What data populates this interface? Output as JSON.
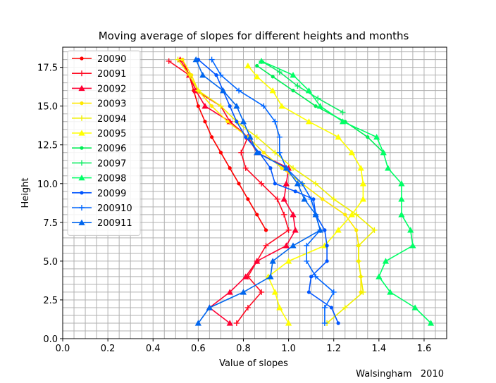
{
  "chart_data": {
    "type": "line",
    "title": "Moving average of slopes for different heights and months",
    "xlabel": "Value of slopes",
    "ylabel": "Height",
    "footer": "Walsingham   2010",
    "xlim": [
      0.0,
      1.7
    ],
    "ylim": [
      0.0,
      18.8
    ],
    "x_ticks": [
      "0.0",
      "0.2",
      "0.4",
      "0.6",
      "0.8",
      "1.0",
      "1.2",
      "1.4",
      "1.6"
    ],
    "y_ticks": [
      "0.0",
      "2.5",
      "5.0",
      "7.5",
      "10.0",
      "12.5",
      "15.0",
      "17.5"
    ],
    "x_tick_values": [
      0.0,
      0.2,
      0.4,
      0.6,
      0.8,
      1.0,
      1.2,
      1.4,
      1.6
    ],
    "y_tick_values": [
      0.0,
      2.5,
      5.0,
      7.5,
      10.0,
      12.5,
      15.0,
      17.5
    ],
    "grid": true,
    "legend_position": "top-left",
    "series": [
      {
        "name": "20090",
        "color": "#ff0000",
        "marker": "dot",
        "points": [
          [
            0.53,
            18.0
          ],
          [
            0.56,
            17.0
          ],
          [
            0.58,
            16.0
          ],
          [
            0.6,
            15.0
          ],
          [
            0.63,
            14.0
          ],
          [
            0.66,
            13.0
          ],
          [
            0.7,
            12.0
          ],
          [
            0.74,
            11.0
          ],
          [
            0.78,
            10.0
          ],
          [
            0.82,
            9.0
          ],
          [
            0.86,
            8.0
          ],
          [
            0.9,
            7.0
          ]
        ]
      },
      {
        "name": "20091",
        "color": "#ff0a22",
        "marker": "plus",
        "points": [
          [
            0.47,
            17.9
          ],
          [
            0.56,
            17.0
          ],
          [
            0.59,
            16.0
          ],
          [
            0.7,
            15.0
          ],
          [
            0.74,
            14.0
          ],
          [
            0.82,
            13.0
          ],
          [
            0.79,
            12.0
          ],
          [
            0.81,
            11.0
          ],
          [
            0.88,
            10.0
          ],
          [
            0.95,
            9.0
          ],
          [
            0.98,
            8.0
          ],
          [
            1.0,
            7.0
          ],
          [
            0.9,
            6.0
          ],
          [
            0.86,
            5.0
          ],
          [
            0.82,
            4.0
          ],
          [
            0.88,
            3.0
          ],
          [
            0.82,
            2.0
          ],
          [
            0.77,
            1.0
          ]
        ]
      },
      {
        "name": "20092",
        "color": "#ff0033",
        "marker": "triangle",
        "points": [
          [
            0.52,
            18.0
          ],
          [
            0.56,
            17.0
          ],
          [
            0.59,
            16.0
          ],
          [
            0.63,
            15.0
          ],
          [
            0.74,
            14.0
          ],
          [
            0.82,
            13.0
          ],
          [
            0.86,
            12.0
          ],
          [
            1.0,
            11.0
          ],
          [
            0.99,
            10.0
          ],
          [
            0.98,
            9.0
          ],
          [
            1.02,
            8.0
          ],
          [
            1.03,
            7.0
          ],
          [
            0.99,
            6.0
          ],
          [
            0.86,
            5.0
          ],
          [
            0.81,
            4.0
          ],
          [
            0.74,
            3.0
          ],
          [
            0.65,
            2.0
          ],
          [
            0.74,
            1.0
          ]
        ]
      },
      {
        "name": "20093",
        "color": "#ffe800",
        "marker": "dot",
        "points": [
          [
            0.53,
            18.0
          ],
          [
            0.57,
            17.0
          ],
          [
            0.6,
            16.0
          ],
          [
            0.66,
            15.0
          ],
          [
            0.73,
            14.0
          ],
          [
            0.82,
            13.0
          ],
          [
            0.89,
            12.0
          ],
          [
            0.97,
            11.0
          ],
          [
            1.06,
            10.0
          ],
          [
            1.15,
            9.0
          ],
          [
            1.25,
            8.0
          ],
          [
            1.3,
            7.0
          ],
          [
            1.31,
            6.0
          ],
          [
            1.31,
            5.0
          ],
          [
            1.32,
            4.0
          ],
          [
            1.32,
            3.0
          ]
        ]
      },
      {
        "name": "20094",
        "color": "#f0f000",
        "marker": "plus",
        "points": [
          [
            0.51,
            18.0
          ],
          [
            0.56,
            17.0
          ],
          [
            0.6,
            16.0
          ],
          [
            0.7,
            15.0
          ],
          [
            0.77,
            14.0
          ],
          [
            0.86,
            13.0
          ],
          [
            0.94,
            12.0
          ],
          [
            1.02,
            11.0
          ],
          [
            1.12,
            10.0
          ],
          [
            1.2,
            9.0
          ],
          [
            1.3,
            8.0
          ],
          [
            1.38,
            7.0
          ],
          [
            1.31,
            6.0
          ],
          [
            1.31,
            5.0
          ],
          [
            1.32,
            4.0
          ],
          [
            1.33,
            3.0
          ],
          [
            1.25,
            2.0
          ],
          [
            1.17,
            1.0
          ]
        ]
      },
      {
        "name": "20095",
        "color": "#ffff00",
        "marker": "triangle",
        "points": [
          [
            0.82,
            17.6
          ],
          [
            0.86,
            16.9
          ],
          [
            0.93,
            16.0
          ],
          [
            0.97,
            15.0
          ],
          [
            1.09,
            14.0
          ],
          [
            1.22,
            13.0
          ],
          [
            1.28,
            12.0
          ],
          [
            1.32,
            11.0
          ],
          [
            1.33,
            10.0
          ],
          [
            1.33,
            9.0
          ],
          [
            1.28,
            8.0
          ],
          [
            1.22,
            7.0
          ],
          [
            1.16,
            6.0
          ],
          [
            1.0,
            5.0
          ],
          [
            0.91,
            4.0
          ],
          [
            0.94,
            3.0
          ],
          [
            0.96,
            2.0
          ],
          [
            1.0,
            1.0
          ]
        ]
      },
      {
        "name": "20096",
        "color": "#00ee55",
        "marker": "dot",
        "points": [
          [
            0.86,
            17.6
          ],
          [
            0.93,
            16.9
          ],
          [
            1.02,
            16.0
          ],
          [
            1.12,
            15.0
          ],
          [
            1.25,
            14.0
          ],
          [
            1.35,
            13.0
          ],
          [
            1.42,
            12.0
          ]
        ]
      },
      {
        "name": "20097",
        "color": "#11ee66",
        "marker": "plus",
        "points": [
          [
            0.88,
            17.9
          ],
          [
            0.96,
            17.2
          ],
          [
            1.04,
            16.3
          ],
          [
            1.13,
            15.5
          ],
          [
            1.24,
            14.6
          ]
        ]
      },
      {
        "name": "20098",
        "color": "#00ff66",
        "marker": "triangle",
        "points": [
          [
            0.88,
            17.9
          ],
          [
            1.02,
            17.0
          ],
          [
            1.09,
            16.0
          ],
          [
            1.14,
            15.0
          ],
          [
            1.24,
            14.0
          ],
          [
            1.39,
            13.0
          ],
          [
            1.42,
            12.0
          ],
          [
            1.44,
            11.0
          ],
          [
            1.5,
            10.0
          ],
          [
            1.5,
            9.0
          ],
          [
            1.5,
            8.0
          ],
          [
            1.54,
            7.0
          ],
          [
            1.55,
            6.0
          ],
          [
            1.43,
            5.0
          ],
          [
            1.4,
            4.0
          ],
          [
            1.45,
            3.0
          ],
          [
            1.56,
            2.0
          ],
          [
            1.63,
            1.0
          ]
        ]
      },
      {
        "name": "20099",
        "color": "#0055ff",
        "marker": "dot",
        "points": [
          [
            0.6,
            18.0
          ],
          [
            0.68,
            17.0
          ],
          [
            0.71,
            16.0
          ],
          [
            0.74,
            15.0
          ],
          [
            0.77,
            14.0
          ],
          [
            0.81,
            13.0
          ],
          [
            0.87,
            12.0
          ],
          [
            0.92,
            11.0
          ],
          [
            0.94,
            10.0
          ],
          [
            1.03,
            9.5
          ],
          [
            1.11,
            9.0
          ],
          [
            1.12,
            8.0
          ],
          [
            1.16,
            7.0
          ],
          [
            1.17,
            6.0
          ],
          [
            1.17,
            5.0
          ],
          [
            1.1,
            4.0
          ],
          [
            1.09,
            3.0
          ],
          [
            1.19,
            2.0
          ],
          [
            1.22,
            1.0
          ]
        ]
      },
      {
        "name": "200910",
        "color": "#0066ff",
        "marker": "plus",
        "points": [
          [
            0.66,
            18.0
          ],
          [
            0.7,
            17.0
          ],
          [
            0.78,
            16.0
          ],
          [
            0.89,
            15.0
          ],
          [
            0.94,
            14.0
          ],
          [
            0.96,
            13.0
          ],
          [
            0.96,
            12.0
          ],
          [
            0.99,
            11.0
          ],
          [
            1.06,
            10.0
          ],
          [
            1.1,
            9.0
          ],
          [
            1.12,
            8.0
          ],
          [
            1.14,
            7.0
          ],
          [
            1.08,
            6.0
          ],
          [
            1.08,
            5.0
          ],
          [
            1.12,
            4.0
          ],
          [
            1.2,
            3.0
          ],
          [
            1.16,
            2.0
          ],
          [
            1.16,
            1.0
          ]
        ]
      },
      {
        "name": "200911",
        "color": "#0066ee",
        "marker": "triangle",
        "points": [
          [
            0.59,
            18.0
          ],
          [
            0.62,
            17.0
          ],
          [
            0.71,
            16.0
          ],
          [
            0.77,
            15.0
          ],
          [
            0.8,
            14.0
          ],
          [
            0.83,
            13.0
          ],
          [
            0.86,
            12.0
          ],
          [
            0.99,
            11.0
          ],
          [
            1.04,
            10.0
          ],
          [
            1.07,
            9.0
          ],
          [
            1.12,
            8.0
          ],
          [
            1.14,
            7.0
          ],
          [
            1.02,
            6.0
          ],
          [
            0.93,
            5.0
          ],
          [
            0.92,
            4.0
          ],
          [
            0.8,
            3.0
          ],
          [
            0.65,
            2.0
          ],
          [
            0.6,
            1.0
          ]
        ]
      }
    ]
  }
}
